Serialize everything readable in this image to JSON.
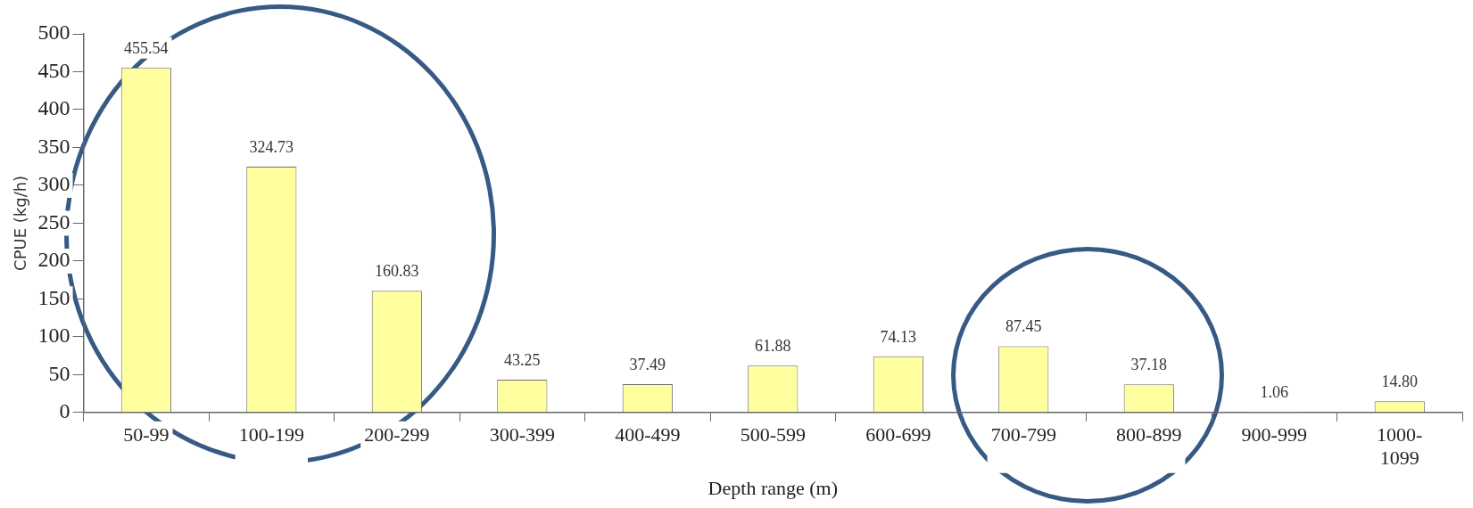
{
  "chart_data": {
    "type": "bar",
    "xlabel": "Depth range (m)",
    "ylabel": "CPUE (kg/h)",
    "categories": [
      "50-99",
      "100-199",
      "200-299",
      "300-399",
      "400-499",
      "500-599",
      "600-699",
      "700-799",
      "800-899",
      "900-999",
      "1000-1099"
    ],
    "values": [
      455.54,
      324.73,
      160.83,
      43.25,
      37.49,
      61.88,
      74.13,
      87.45,
      37.18,
      1.06,
      14.8
    ],
    "value_labels": [
      "455.54",
      "324.73",
      "160.83",
      "43.25",
      "37.49",
      "61.88",
      "74.13",
      "87.45",
      "37.18",
      "1.06",
      "14.80"
    ],
    "color": "#ffffa0",
    "ylim": [
      0,
      500
    ],
    "yticks": [
      0,
      50,
      100,
      150,
      200,
      250,
      300,
      350,
      400,
      450,
      500
    ],
    "grid": false,
    "legend": false
  }
}
